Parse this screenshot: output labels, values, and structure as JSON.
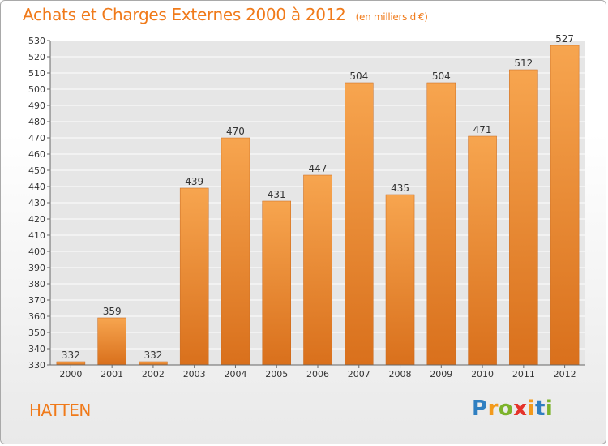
{
  "title": "Achats et Charges Externes 2000 à 2012",
  "subtitle": "(en milliers d'€)",
  "commune": "HATTEN",
  "brand": {
    "text": "Proxiti",
    "letter_colors": [
      "#2f7fc1",
      "#f39a1c",
      "#7cb32b",
      "#e5332a",
      "#f39a1c",
      "#2f7fc1",
      "#7cb32b"
    ]
  },
  "colors": {
    "accent": "#f07a1a",
    "bar_top": "#f7a54f",
    "bar_bottom": "#d9701c",
    "grid": "#ffffff",
    "axis_text": "#333333"
  },
  "chart_data": {
    "type": "bar",
    "categories": [
      "2000",
      "2001",
      "2002",
      "2003",
      "2004",
      "2005",
      "2006",
      "2007",
      "2008",
      "2009",
      "2010",
      "2011",
      "2012"
    ],
    "values": [
      332,
      359,
      332,
      439,
      470,
      431,
      447,
      504,
      435,
      504,
      471,
      512,
      527
    ],
    "data_labels": [
      "332",
      "359",
      "332",
      "439",
      "470",
      "431",
      "447",
      "504",
      "435",
      "504",
      "471",
      "512",
      "527"
    ],
    "title": "Achats et Charges Externes 2000 à 2012",
    "xlabel": "",
    "ylabel": "",
    "ylim": [
      330,
      530
    ],
    "yticks": [
      330,
      340,
      350,
      360,
      370,
      380,
      390,
      400,
      410,
      420,
      430,
      440,
      450,
      460,
      470,
      480,
      490,
      500,
      510,
      520,
      530
    ],
    "grid": true,
    "legend": "none"
  }
}
